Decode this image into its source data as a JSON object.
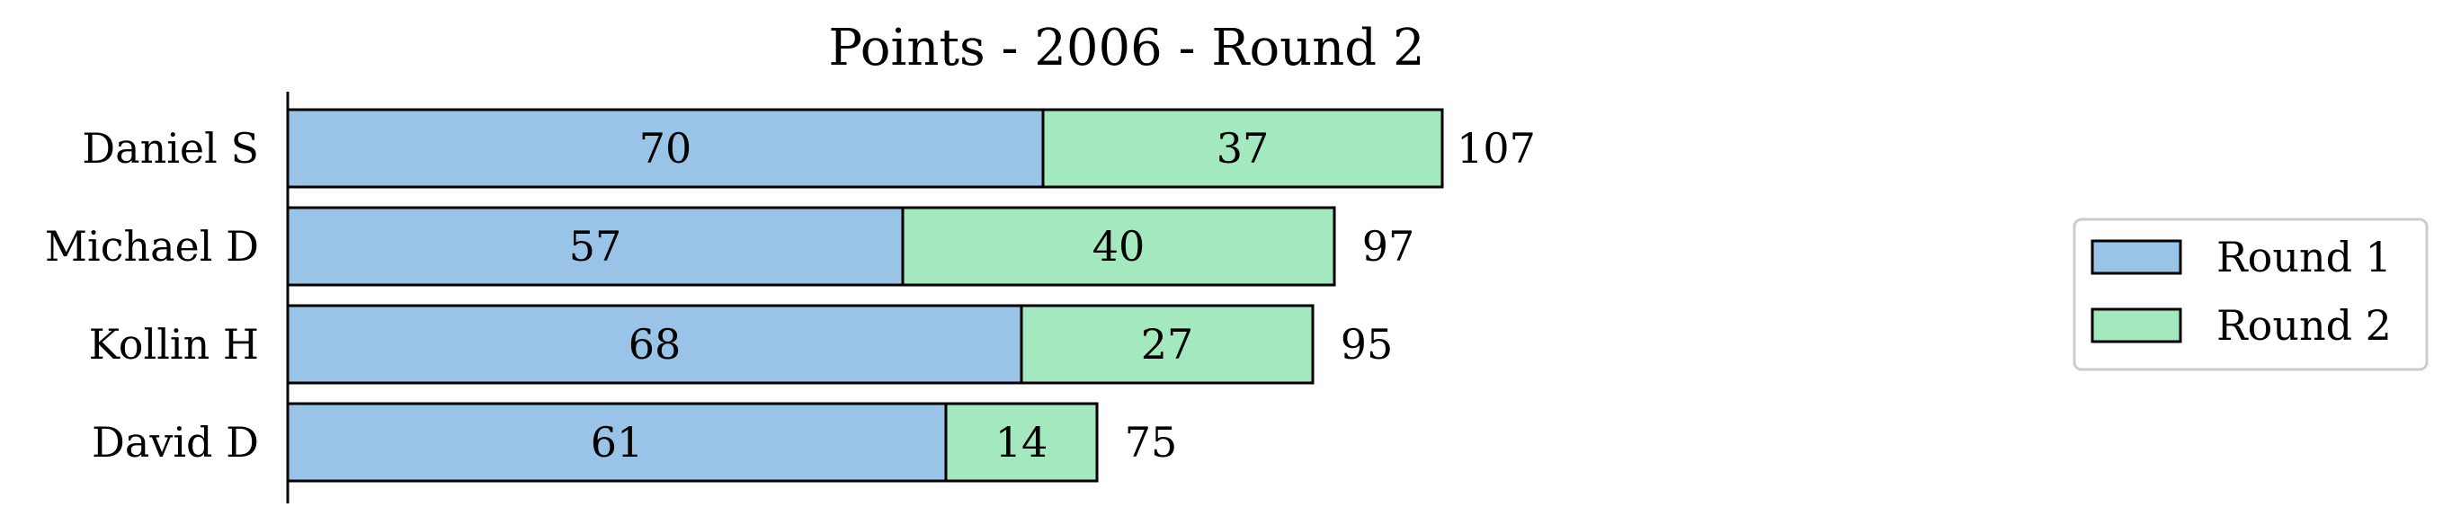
{
  "chart_data": {
    "type": "bar",
    "orientation": "horizontal",
    "stacked": true,
    "title": "Points - 2006 - Round 2",
    "xlabel": "",
    "ylabel": "",
    "categories": [
      "Daniel S",
      "Michael D",
      "Kollin H",
      "David D"
    ],
    "series": [
      {
        "name": "Round 1",
        "values": [
          70,
          57,
          68,
          61
        ],
        "color": "#99c4e8"
      },
      {
        "name": "Round 2",
        "values": [
          37,
          40,
          27,
          14
        ],
        "color": "#a4e8c0"
      }
    ],
    "totals": [
      107,
      97,
      95,
      75
    ],
    "xlim": [
      0,
      107
    ],
    "grid": false,
    "legend": "right"
  }
}
